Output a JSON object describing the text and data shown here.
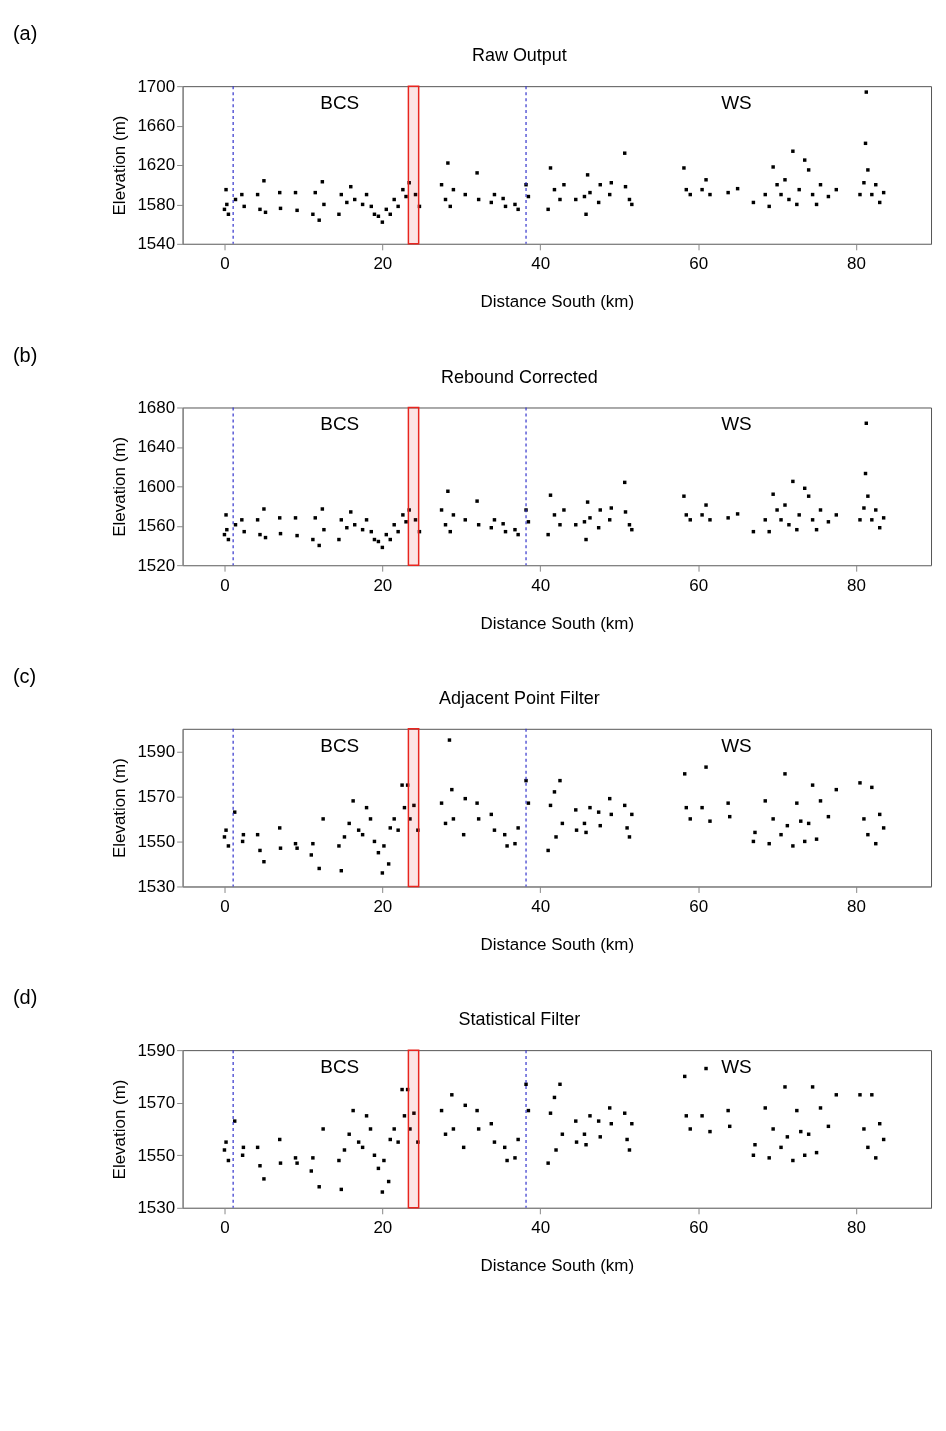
{
  "chart_data": [
    {
      "type": "scatter",
      "title": "Raw Output",
      "xlabel": "Distance South (km)",
      "ylabel": "Elevation (m)",
      "xlim": [
        -5.3,
        89.5
      ],
      "xticks": [
        0,
        20,
        40,
        60,
        80
      ],
      "ylim": [
        1540,
        1700
      ],
      "yticks": [
        1540,
        1580,
        1620,
        1660,
        1700
      ],
      "marker": "square",
      "annotations": [
        "(a)",
        "BCS",
        "WS"
      ],
      "ref_lines": [
        {
          "axis": "x",
          "value": 1.1,
          "color": "#3333cc",
          "line_style": "dashed"
        },
        {
          "axis": "x",
          "value": 38.2,
          "color": "#3333cc",
          "line_style": "dashed"
        }
      ],
      "bands": [
        {
          "axis": "x",
          "from": 23.3,
          "to": 24.6,
          "color": "#e8251f"
        }
      ],
      "series": [
        {
          "color": "#000000",
          "x": [
            0,
            0.2,
            0.3,
            0.5,
            1.4,
            2.2,
            2.5,
            4.2,
            4.5,
            5,
            5.2,
            7,
            7.1,
            9,
            9.2,
            11.2,
            11.5,
            12,
            12.4,
            12.6,
            14.5,
            14.8,
            15.5,
            16,
            16.5,
            17.5,
            18,
            18.6,
            19,
            19.5,
            20,
            20.5,
            21,
            21.5,
            22,
            22.6,
            23,
            23.4,
            24.2,
            24.7,
            27.5,
            28,
            28.3,
            28.6,
            29,
            30.5,
            32,
            32.2,
            33.8,
            34.2,
            35.3,
            35.6,
            36.8,
            37.2,
            38.2,
            38.5,
            41,
            41.3,
            41.8,
            42.5,
            43,
            44.5,
            45.6,
            45.8,
            46,
            46.3,
            47.4,
            47.6,
            48.8,
            49,
            50.7,
            50.8,
            51.3,
            51.6,
            58.2,
            58.5,
            59,
            60.5,
            61,
            61.5,
            63.8,
            65,
            67,
            68.5,
            69,
            69.5,
            70,
            70.5,
            71,
            71.5,
            72,
            72.5,
            72.8,
            73.5,
            74,
            74.5,
            75,
            75.5,
            76.5,
            77.5,
            80.5,
            81,
            81.2,
            81.3,
            81.5,
            82,
            82.5,
            83,
            83.5
          ],
          "values": [
            1575,
            1595,
            1580,
            1570,
            1585,
            1590,
            1578,
            1590,
            1575,
            1604,
            1572,
            1592,
            1576,
            1592,
            1574,
            1570,
            1592,
            1564,
            1603,
            1580,
            1570,
            1590,
            1582,
            1598,
            1585,
            1580,
            1590,
            1578,
            1570,
            1568,
            1562,
            1575,
            1570,
            1585,
            1578,
            1595,
            1588,
            1602,
            1590,
            1578,
            1600,
            1585,
            1622,
            1578,
            1595,
            1590,
            1612,
            1585,
            1582,
            1590,
            1586,
            1578,
            1580,
            1575,
            1600,
            1588,
            1575,
            1617,
            1595,
            1585,
            1600,
            1585,
            1588,
            1570,
            1610,
            1592,
            1582,
            1600,
            1590,
            1602,
            1632,
            1598,
            1585,
            1580,
            1617,
            1595,
            1590,
            1595,
            1605,
            1590,
            1592,
            1596,
            1582,
            1590,
            1578,
            1618,
            1600,
            1590,
            1605,
            1585,
            1634,
            1580,
            1595,
            1625,
            1615,
            1590,
            1580,
            1600,
            1588,
            1595,
            1590,
            1602,
            1642,
            1694,
            1615,
            1590,
            1600,
            1582,
            1592
          ]
        }
      ]
    },
    {
      "type": "scatter",
      "title": "Rebound Corrected",
      "xlabel": "Distance South (km)",
      "ylabel": "Elevation (m)",
      "xlim": [
        -5.3,
        89.5
      ],
      "xticks": [
        0,
        20,
        40,
        60,
        80
      ],
      "ylim": [
        1520,
        1680
      ],
      "yticks": [
        1520,
        1560,
        1600,
        1640,
        1680
      ],
      "marker": "square",
      "annotations": [
        "(b)",
        "BCS",
        "WS"
      ],
      "ref_lines": [
        {
          "axis": "x",
          "value": 1.1,
          "color": "#3333cc",
          "line_style": "dashed"
        },
        {
          "axis": "x",
          "value": 38.2,
          "color": "#3333cc",
          "line_style": "dashed"
        }
      ],
      "bands": [
        {
          "axis": "x",
          "from": 23.3,
          "to": 24.6,
          "color": "#e8251f"
        }
      ],
      "series": [
        {
          "color": "#000000",
          "x": [
            0,
            0.2,
            0.3,
            0.5,
            1.4,
            2.2,
            2.5,
            4.2,
            4.5,
            5,
            5.2,
            7,
            7.1,
            9,
            9.2,
            11.2,
            11.5,
            12,
            12.4,
            12.6,
            14.5,
            14.8,
            15.5,
            16,
            16.5,
            17.5,
            18,
            18.6,
            19,
            19.5,
            20,
            20.5,
            21,
            21.5,
            22,
            22.6,
            23,
            23.4,
            24.2,
            24.7,
            27.5,
            28,
            28.3,
            28.6,
            29,
            30.5,
            32,
            32.2,
            33.8,
            34.2,
            35.3,
            35.6,
            36.8,
            37.2,
            38.2,
            38.5,
            41,
            41.3,
            41.8,
            42.5,
            43,
            44.5,
            45.6,
            45.8,
            46,
            46.3,
            47.4,
            47.6,
            48.8,
            49,
            50.7,
            50.8,
            51.3,
            51.6,
            58.2,
            58.5,
            59,
            60.5,
            61,
            61.5,
            63.8,
            65,
            67,
            68.5,
            69,
            69.5,
            70,
            70.5,
            71,
            71.5,
            72,
            72.5,
            72.8,
            73.5,
            74,
            74.5,
            75,
            75.5,
            76.5,
            77.5,
            80.5,
            81,
            81.2,
            81.3,
            81.5,
            82,
            82.5,
            83,
            83.5
          ],
          "values": [
            1551,
            1571,
            1556,
            1546,
            1561,
            1566,
            1554,
            1566,
            1551,
            1577,
            1548,
            1568,
            1552,
            1568,
            1550,
            1546,
            1568,
            1540,
            1577,
            1556,
            1546,
            1566,
            1558,
            1574,
            1561,
            1556,
            1566,
            1554,
            1546,
            1544,
            1538,
            1551,
            1546,
            1561,
            1554,
            1571,
            1564,
            1576,
            1566,
            1554,
            1576,
            1561,
            1595,
            1554,
            1571,
            1566,
            1585,
            1561,
            1558,
            1566,
            1562,
            1554,
            1556,
            1551,
            1576,
            1564,
            1551,
            1591,
            1571,
            1561,
            1576,
            1561,
            1564,
            1546,
            1584,
            1568,
            1558,
            1576,
            1566,
            1578,
            1604,
            1574,
            1561,
            1556,
            1590,
            1571,
            1566,
            1571,
            1581,
            1566,
            1568,
            1572,
            1554,
            1566,
            1554,
            1592,
            1576,
            1566,
            1581,
            1561,
            1605,
            1556,
            1571,
            1598,
            1590,
            1566,
            1556,
            1576,
            1564,
            1571,
            1566,
            1578,
            1613,
            1664,
            1590,
            1566,
            1576,
            1558,
            1568
          ]
        }
      ]
    },
    {
      "type": "scatter",
      "title": "Adjacent Point Filter",
      "xlabel": "Distance South (km)",
      "ylabel": "Elevation (m)",
      "xlim": [
        -5.3,
        89.5
      ],
      "xticks": [
        0,
        20,
        40,
        60,
        80
      ],
      "ylim": [
        1530,
        1600
      ],
      "yticks": [
        1530,
        1550,
        1570,
        1590
      ],
      "marker": "square",
      "annotations": [
        "(c)",
        "BCS",
        "WS"
      ],
      "ref_lines": [
        {
          "axis": "x",
          "value": 1.1,
          "color": "#3333cc",
          "line_style": "dashed"
        },
        {
          "axis": "x",
          "value": 38.2,
          "color": "#3333cc",
          "line_style": "dashed"
        }
      ],
      "bands": [
        {
          "axis": "x",
          "from": 23.3,
          "to": 24.6,
          "color": "#e8251f"
        }
      ],
      "series": [
        {
          "color": "#000000",
          "x": [
            0,
            0.2,
            0.5,
            1.3,
            2.3,
            2.4,
            4.2,
            4.5,
            5,
            7,
            7.1,
            9,
            9.2,
            11,
            11.2,
            12,
            12.5,
            14.5,
            14.8,
            15.2,
            15.8,
            16.3,
            17,
            17.5,
            18,
            18.5,
            19,
            19.5,
            20,
            20.2,
            20.8,
            21,
            21.5,
            22,
            22.5,
            22.8,
            23.2,
            23.5,
            24,
            24.5,
            27.5,
            28,
            28.5,
            28.8,
            29,
            30.5,
            30.3,
            32,
            32.2,
            33.8,
            34.2,
            35.5,
            35.8,
            36.8,
            37.2,
            38.2,
            38.5,
            41,
            41.3,
            41.8,
            42,
            42.5,
            42.8,
            44.5,
            44.6,
            45.6,
            45.8,
            46.3,
            47.4,
            47.6,
            48.8,
            49,
            50.7,
            51,
            51.3,
            51.6,
            58.3,
            58.5,
            59,
            60.5,
            61,
            61.5,
            63.8,
            64,
            67,
            67.2,
            68.5,
            69,
            69.5,
            70.5,
            71,
            71.3,
            72,
            72.5,
            73,
            73.5,
            74,
            74.5,
            75,
            75.5,
            76.5,
            77.5,
            80.5,
            81,
            81.5,
            82,
            82.5,
            83,
            83.5
          ],
          "values": [
            1552,
            1555,
            1548,
            1563,
            1550,
            1553,
            1553,
            1546,
            1541,
            1556,
            1547,
            1549,
            1547,
            1544,
            1549,
            1538,
            1560,
            1548,
            1537,
            1552,
            1558,
            1568,
            1555,
            1553,
            1565,
            1560,
            1550,
            1545,
            1536,
            1548,
            1540,
            1556,
            1560,
            1555,
            1575,
            1565,
            1575,
            1560,
            1566,
            1555,
            1567,
            1558,
            1595,
            1573,
            1560,
            1569,
            1553,
            1567,
            1560,
            1562,
            1555,
            1553,
            1548,
            1549,
            1556,
            1577,
            1567,
            1546,
            1566,
            1572,
            1552,
            1577,
            1558,
            1564,
            1555,
            1558,
            1554,
            1565,
            1563,
            1557,
            1569,
            1562,
            1566,
            1556,
            1552,
            1562,
            1580,
            1565,
            1560,
            1565,
            1583,
            1559,
            1567,
            1561,
            1550,
            1554,
            1568,
            1549,
            1560,
            1553,
            1580,
            1557,
            1548,
            1567,
            1559,
            1550,
            1558,
            1575,
            1551,
            1568,
            1561,
            1573,
            1576,
            1560,
            1553,
            1574,
            1549,
            1562,
            1556
          ]
        }
      ]
    },
    {
      "type": "scatter",
      "title": "Statistical Filter",
      "xlabel": "Distance South (km)",
      "ylabel": "Elevation (m)",
      "xlim": [
        -5.3,
        89.5
      ],
      "xticks": [
        0,
        20,
        40,
        60,
        80
      ],
      "ylim": [
        1530,
        1590
      ],
      "yticks": [
        1530,
        1550,
        1570,
        1590
      ],
      "marker": "square",
      "annotations": [
        "(d)",
        "BCS",
        "WS"
      ],
      "ref_lines": [
        {
          "axis": "x",
          "value": 1.1,
          "color": "#3333cc",
          "line_style": "dashed"
        },
        {
          "axis": "x",
          "value": 38.2,
          "color": "#3333cc",
          "line_style": "dashed"
        }
      ],
      "bands": [
        {
          "axis": "x",
          "from": 23.3,
          "to": 24.6,
          "color": "#e8251f"
        }
      ],
      "series": [
        {
          "color": "#000000",
          "x": [
            0,
            0.2,
            0.5,
            1.3,
            2.3,
            2.4,
            4.2,
            4.5,
            5,
            7,
            7.1,
            9,
            9.2,
            11,
            11.2,
            12,
            12.5,
            14.5,
            14.8,
            15.2,
            15.8,
            16.3,
            17,
            17.5,
            18,
            18.5,
            19,
            19.5,
            20,
            20.2,
            20.8,
            21,
            21.5,
            22,
            22.5,
            22.8,
            23.2,
            23.5,
            24,
            24.5,
            27.5,
            28,
            28.8,
            29,
            30.5,
            30.3,
            32,
            32.2,
            33.8,
            34.2,
            35.5,
            35.8,
            36.8,
            37.2,
            38.2,
            38.5,
            41,
            41.3,
            41.8,
            42,
            42.5,
            42.8,
            44.5,
            44.6,
            45.6,
            45.8,
            46.3,
            47.4,
            47.6,
            48.8,
            49,
            50.7,
            51,
            51.3,
            51.6,
            58.3,
            58.5,
            59,
            60.5,
            61,
            61.5,
            63.8,
            64,
            67,
            67.2,
            68.5,
            69,
            69.5,
            70.5,
            71,
            71.3,
            72,
            72.5,
            73,
            73.5,
            74,
            74.5,
            75,
            75.5,
            76.5,
            77.5,
            80.5,
            81,
            81.5,
            82,
            82.5,
            83,
            83.5
          ],
          "values": [
            1552,
            1555,
            1548,
            1563,
            1550,
            1553,
            1553,
            1546,
            1541,
            1556,
            1547,
            1549,
            1547,
            1544,
            1549,
            1538,
            1560,
            1548,
            1537,
            1552,
            1558,
            1567,
            1555,
            1553,
            1565,
            1560,
            1550,
            1545,
            1536,
            1548,
            1540,
            1556,
            1560,
            1555,
            1575,
            1565,
            1575,
            1560,
            1566,
            1555,
            1567,
            1558,
            1573,
            1560,
            1569,
            1553,
            1567,
            1560,
            1562,
            1555,
            1553,
            1548,
            1549,
            1556,
            1577,
            1567,
            1547,
            1566,
            1572,
            1552,
            1577,
            1558,
            1563,
            1555,
            1558,
            1554,
            1565,
            1563,
            1557,
            1568,
            1562,
            1566,
            1556,
            1552,
            1562,
            1580,
            1565,
            1560,
            1565,
            1583,
            1559,
            1567,
            1561,
            1550,
            1554,
            1568,
            1549,
            1560,
            1553,
            1576,
            1557,
            1548,
            1567,
            1559,
            1550,
            1558,
            1576,
            1551,
            1568,
            1561,
            1573,
            1573,
            1560,
            1553,
            1573,
            1549,
            1562,
            1556
          ]
        }
      ]
    }
  ]
}
